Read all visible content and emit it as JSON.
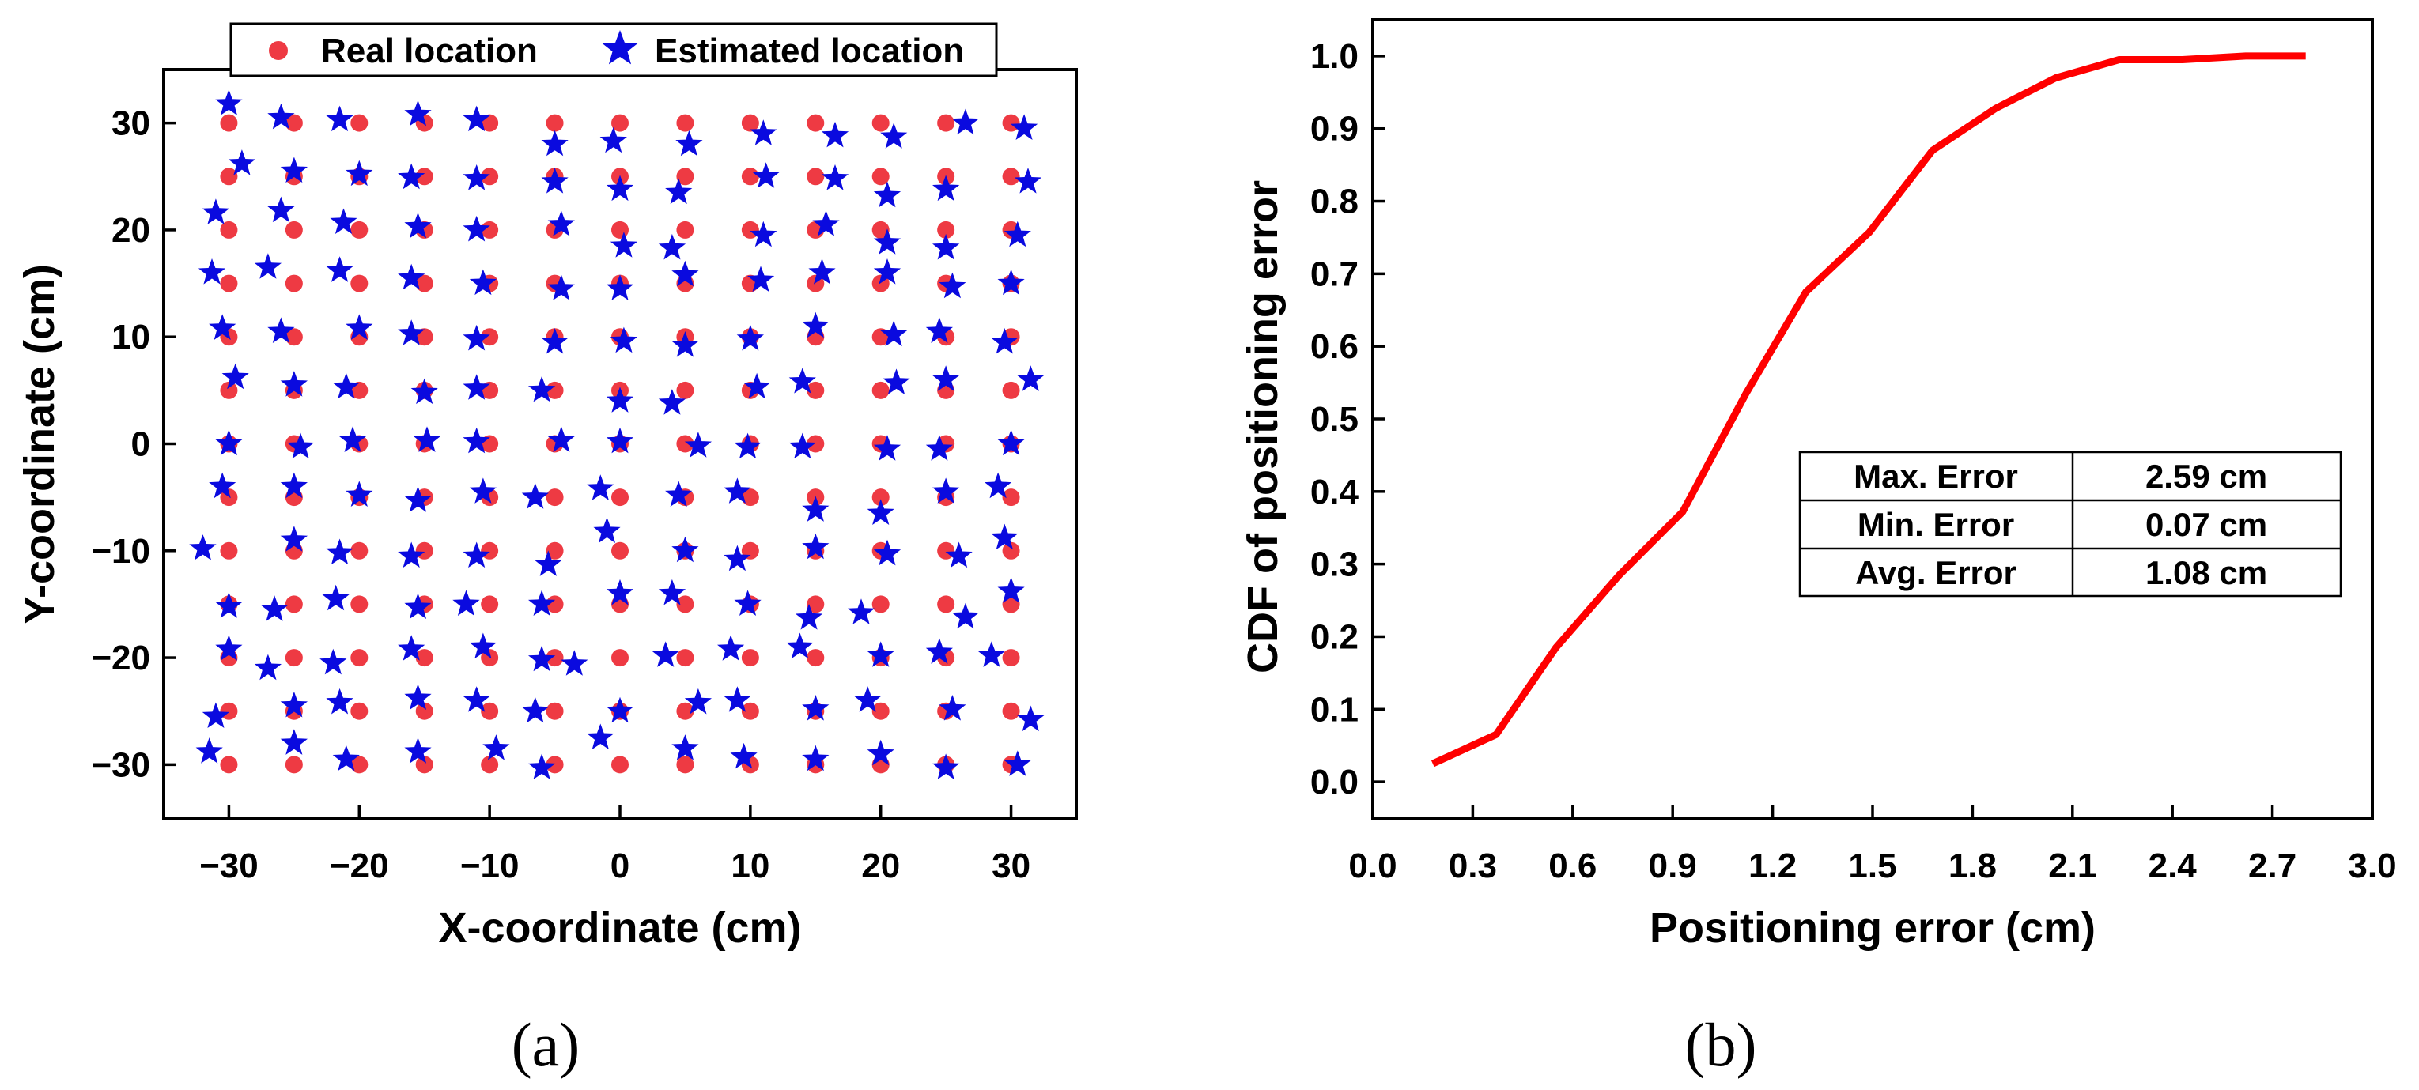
{
  "chart_data": [
    {
      "type": "scatter",
      "panel_label": "(a)",
      "xlabel": "X-coordinate (cm)",
      "ylabel": "Y-coordinate (cm)",
      "xlim": [
        -35,
        35
      ],
      "ylim": [
        -35,
        35
      ],
      "xticks": [
        -30,
        -20,
        -10,
        0,
        10,
        20,
        30
      ],
      "yticks": [
        -30,
        -20,
        -10,
        0,
        10,
        20,
        30
      ],
      "xtick_labels": [
        "−30",
        "−20",
        "−10",
        "0",
        "10",
        "20",
        "30"
      ],
      "ytick_labels": [
        "−30",
        "−20",
        "−10",
        "0",
        "10",
        "20",
        "30"
      ],
      "legend": {
        "position": "top",
        "entries": [
          "Real location",
          "Estimated location"
        ]
      },
      "colors": {
        "real": "#ee3a43",
        "estimated": "#0a0adf"
      },
      "real_grid": {
        "x": [
          -30,
          -25,
          -20,
          -15,
          -10,
          -5,
          0,
          5,
          10,
          15,
          20,
          25,
          30
        ],
        "y": [
          30,
          25,
          20,
          15,
          10,
          5,
          0,
          -5,
          -10,
          -15,
          -20,
          -25,
          -30
        ]
      },
      "estimated_points": [
        [
          -30,
          31.8
        ],
        [
          -26,
          30.5
        ],
        [
          -21.5,
          30.3
        ],
        [
          -15.5,
          30.8
        ],
        [
          -11,
          30.3
        ],
        [
          -5,
          28
        ],
        [
          -0.5,
          28.3
        ],
        [
          5.3,
          28
        ],
        [
          11,
          29
        ],
        [
          16.5,
          28.8
        ],
        [
          21,
          28.7
        ],
        [
          26.5,
          30
        ],
        [
          31,
          29.5
        ],
        [
          -29,
          26.2
        ],
        [
          -25,
          25.5
        ],
        [
          -20,
          25.2
        ],
        [
          -16,
          24.9
        ],
        [
          -11,
          24.8
        ],
        [
          -5,
          24.5
        ],
        [
          0,
          23.8
        ],
        [
          4.5,
          23.5
        ],
        [
          11.2,
          25
        ],
        [
          16.5,
          24.8
        ],
        [
          20.5,
          23.2
        ],
        [
          25,
          23.8
        ],
        [
          31.3,
          24.5
        ],
        [
          -31,
          21.6
        ],
        [
          -26,
          21.8
        ],
        [
          -21.2,
          20.7
        ],
        [
          -15.5,
          20.3
        ],
        [
          -11,
          20
        ],
        [
          -4.5,
          20.5
        ],
        [
          0.3,
          18.5
        ],
        [
          4,
          18.3
        ],
        [
          11,
          19.5
        ],
        [
          15.8,
          20.5
        ],
        [
          20.5,
          18.8
        ],
        [
          25,
          18.3
        ],
        [
          30.5,
          19.5
        ],
        [
          -31.3,
          16
        ],
        [
          -27,
          16.5
        ],
        [
          -21.5,
          16.2
        ],
        [
          -16,
          15.5
        ],
        [
          -10.5,
          15
        ],
        [
          -4.5,
          14.5
        ],
        [
          0,
          14.5
        ],
        [
          5,
          15.8
        ],
        [
          10.8,
          15.3
        ],
        [
          15.5,
          16
        ],
        [
          20.5,
          16
        ],
        [
          25.5,
          14.7
        ],
        [
          30,
          15
        ],
        [
          -30.5,
          10.8
        ],
        [
          -26,
          10.5
        ],
        [
          -20,
          10.8
        ],
        [
          -16,
          10.3
        ],
        [
          -11,
          9.8
        ],
        [
          -5,
          9.5
        ],
        [
          0.3,
          9.6
        ],
        [
          5,
          9.2
        ],
        [
          10,
          9.8
        ],
        [
          15,
          11
        ],
        [
          21,
          10.2
        ],
        [
          24.5,
          10.5
        ],
        [
          29.5,
          9.5
        ],
        [
          -29.5,
          6.2
        ],
        [
          -25,
          5.5
        ],
        [
          -21,
          5.3
        ],
        [
          -15,
          4.8
        ],
        [
          -11,
          5.2
        ],
        [
          -6,
          5
        ],
        [
          0,
          4
        ],
        [
          4,
          3.8
        ],
        [
          10.5,
          5.3
        ],
        [
          14,
          5.8
        ],
        [
          21.2,
          5.7
        ],
        [
          25,
          6
        ],
        [
          31.5,
          6
        ],
        [
          -30,
          0
        ],
        [
          -24.5,
          -0.3
        ],
        [
          -20.5,
          0.3
        ],
        [
          -14.8,
          0.3
        ],
        [
          -11,
          0.2
        ],
        [
          -4.5,
          0.3
        ],
        [
          0,
          0.2
        ],
        [
          6,
          -0.2
        ],
        [
          9.8,
          -0.3
        ],
        [
          14,
          -0.3
        ],
        [
          20.5,
          -0.5
        ],
        [
          24.5,
          -0.5
        ],
        [
          30,
          0
        ],
        [
          -30.5,
          -4
        ],
        [
          -25,
          -4
        ],
        [
          -20,
          -4.8
        ],
        [
          -15.5,
          -5.3
        ],
        [
          -10.5,
          -4.5
        ],
        [
          -6.5,
          -5
        ],
        [
          -1.5,
          -4.2
        ],
        [
          4.5,
          -4.8
        ],
        [
          9,
          -4.5
        ],
        [
          15,
          -6.2
        ],
        [
          20,
          -6.5
        ],
        [
          25,
          -4.5
        ],
        [
          29,
          -4
        ],
        [
          -32,
          -9.8
        ],
        [
          -25,
          -9
        ],
        [
          -21.5,
          -10.2
        ],
        [
          -16,
          -10.5
        ],
        [
          -11,
          -10.5
        ],
        [
          -5.5,
          -11.3
        ],
        [
          -1,
          -8.2
        ],
        [
          5,
          -10
        ],
        [
          9,
          -10.8
        ],
        [
          15,
          -9.7
        ],
        [
          20.5,
          -10.3
        ],
        [
          26,
          -10.5
        ],
        [
          29.5,
          -8.8
        ],
        [
          -30,
          -15.2
        ],
        [
          -26.5,
          -15.5
        ],
        [
          -21.8,
          -14.5
        ],
        [
          -15.5,
          -15.3
        ],
        [
          -11.8,
          -15
        ],
        [
          -6,
          -15
        ],
        [
          0,
          -14
        ],
        [
          4,
          -14
        ],
        [
          9.8,
          -15
        ],
        [
          14.5,
          -16.3
        ],
        [
          18.5,
          -15.8
        ],
        [
          26.5,
          -16.2
        ],
        [
          30,
          -13.8
        ],
        [
          -30,
          -19.2
        ],
        [
          -27,
          -21
        ],
        [
          -22,
          -20.5
        ],
        [
          -16,
          -19.2
        ],
        [
          -10.5,
          -19
        ],
        [
          -6,
          -20.2
        ],
        [
          -3.5,
          -20.6
        ],
        [
          3.5,
          -19.8
        ],
        [
          8.5,
          -19.2
        ],
        [
          13.8,
          -19
        ],
        [
          20,
          -19.8
        ],
        [
          24.5,
          -19.5
        ],
        [
          28.5,
          -19.8
        ],
        [
          -31,
          -25.5
        ],
        [
          -25,
          -24.5
        ],
        [
          -21.5,
          -24.2
        ],
        [
          -15.5,
          -23.8
        ],
        [
          -11,
          -24
        ],
        [
          -6.5,
          -25
        ],
        [
          0,
          -25
        ],
        [
          6,
          -24.2
        ],
        [
          9,
          -24
        ],
        [
          15,
          -24.8
        ],
        [
          19,
          -24
        ],
        [
          25.5,
          -24.8
        ],
        [
          31.5,
          -25.8
        ],
        [
          -31.5,
          -28.8
        ],
        [
          -25,
          -28
        ],
        [
          -21,
          -29.5
        ],
        [
          -15.5,
          -28.8
        ],
        [
          -9.5,
          -28.5
        ],
        [
          -6,
          -30.3
        ],
        [
          -1.5,
          -27.5
        ],
        [
          5,
          -28.5
        ],
        [
          9.5,
          -29.3
        ],
        [
          15,
          -29.5
        ],
        [
          20,
          -29
        ],
        [
          25,
          -30.3
        ],
        [
          30.5,
          -30
        ]
      ]
    },
    {
      "type": "line",
      "panel_label": "(b)",
      "xlabel": "Positioning error (cm)",
      "ylabel": "CDF of positioning error",
      "xlim": [
        0.0,
        3.0
      ],
      "ylim": [
        -0.05,
        1.05
      ],
      "xticks": [
        0.0,
        0.3,
        0.6,
        0.9,
        1.2,
        1.5,
        1.8,
        2.1,
        2.4,
        2.7,
        3.0
      ],
      "yticks": [
        0.0,
        0.1,
        0.2,
        0.3,
        0.4,
        0.5,
        0.6,
        0.7,
        0.8,
        0.9,
        1.0
      ],
      "xtick_labels": [
        "0.0",
        "0.3",
        "0.6",
        "0.9",
        "1.2",
        "1.5",
        "1.8",
        "2.1",
        "2.4",
        "2.7",
        "3.0"
      ],
      "ytick_labels": [
        "0.0",
        "0.1",
        "0.2",
        "0.3",
        "0.4",
        "0.5",
        "0.6",
        "0.7",
        "0.8",
        "0.9",
        "1.0"
      ],
      "line_color": "#ff0000",
      "x": [
        0.18,
        0.37,
        0.55,
        0.74,
        0.93,
        1.12,
        1.3,
        1.49,
        1.68,
        1.87,
        2.05,
        2.24,
        2.43,
        2.62,
        2.8
      ],
      "y": [
        0.025,
        0.065,
        0.185,
        0.285,
        0.372,
        0.535,
        0.675,
        0.757,
        0.87,
        0.928,
        0.97,
        0.995,
        0.995,
        1.0,
        1.0
      ],
      "error_table": [
        {
          "label": "Max. Error",
          "value": "2.59 cm"
        },
        {
          "label": "Min. Error",
          "value": "0.07 cm"
        },
        {
          "label": "Avg. Error",
          "value": "1.08 cm"
        }
      ]
    }
  ]
}
